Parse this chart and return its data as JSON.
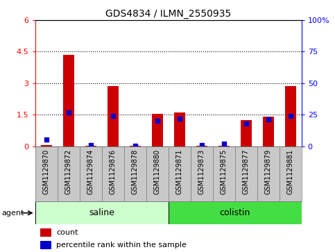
{
  "title": "GDS4834 / ILMN_2550935",
  "samples": [
    "GSM1129870",
    "GSM1129872",
    "GSM1129874",
    "GSM1129876",
    "GSM1129878",
    "GSM1129880",
    "GSM1129871",
    "GSM1129873",
    "GSM1129875",
    "GSM1129877",
    "GSM1129879",
    "GSM1129881"
  ],
  "count": [
    0.05,
    4.35,
    0.02,
    2.85,
    0.02,
    1.55,
    1.6,
    0.02,
    0.02,
    1.25,
    1.4,
    2.85
  ],
  "percentile": [
    5,
    27,
    1,
    24,
    0.5,
    20,
    22,
    1,
    2,
    18,
    21,
    24
  ],
  "groups": [
    {
      "label": "saline",
      "start": 0,
      "end": 6,
      "color": "#b3ffb3"
    },
    {
      "label": "colistin",
      "start": 6,
      "end": 12,
      "color": "#44ee44"
    }
  ],
  "ylim_left": [
    0,
    6
  ],
  "ylim_right": [
    0,
    100
  ],
  "yticks_left": [
    0,
    1.5,
    3.0,
    4.5,
    6
  ],
  "yticks_right": [
    0,
    25,
    50,
    75,
    100
  ],
  "ytick_labels_left": [
    "0",
    "1.5",
    "3",
    "4.5",
    "6"
  ],
  "ytick_labels_right": [
    "0",
    "25",
    "50",
    "75",
    "100%"
  ],
  "bar_color": "#cc0000",
  "percentile_color": "#0000cc",
  "bar_width": 0.5,
  "grid_yticks": [
    1.5,
    3.0,
    4.5
  ],
  "tick_box_color": "#c8c8c8",
  "agent_label": "agent",
  "legend_count": "count",
  "legend_percentile": "percentile rank within the sample",
  "saline_color": "#ccffcc",
  "colistin_color": "#44dd44"
}
